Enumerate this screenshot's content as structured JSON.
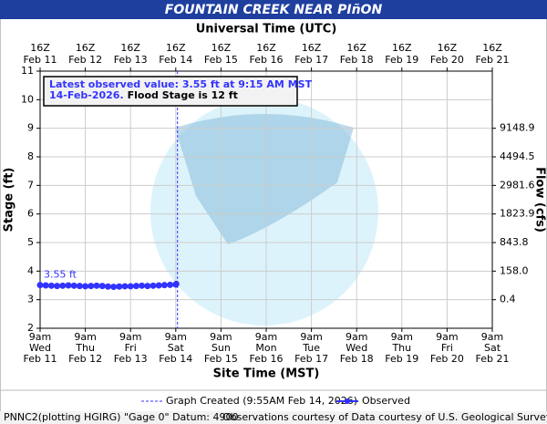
{
  "chart_data": {
    "type": "line",
    "title": "FOUNTAIN CREEK NEAR PIñON",
    "x2_label": "Universal Time (UTC)",
    "xlabel": "Site Time (MST)",
    "ylabel": "Stage (ft)",
    "y2label": "Flow (cfs)",
    "xlim": [
      0,
      10
    ],
    "xticks": [
      {
        "value": 0,
        "label": "Feb 11"
      },
      {
        "value": 1,
        "label": "Feb 12"
      },
      {
        "value": 2,
        "label": "Feb 13"
      },
      {
        "value": 3,
        "label": "Feb 14"
      },
      {
        "value": 4,
        "label": "Feb 15"
      },
      {
        "value": 5,
        "label": "Feb 16"
      },
      {
        "value": 6,
        "label": "Feb 17"
      },
      {
        "value": 7,
        "label": "Feb 18"
      },
      {
        "value": 8,
        "label": "Feb 19"
      },
      {
        "value": 9,
        "label": "Feb 20"
      },
      {
        "value": 10,
        "label": "Feb 21"
      }
    ],
    "xtick_hour": "9am",
    "x2tick_hour": "16Z",
    "xtick_weekdays": [
      "Wed",
      "Thu",
      "Fri",
      "Sat",
      "Sun",
      "Mon",
      "Tue",
      "Wed",
      "Thu",
      "Fri",
      "Sat"
    ],
    "ylim": [
      2,
      11
    ],
    "yticks": [
      2,
      3,
      4,
      5,
      6,
      7,
      8,
      9,
      10,
      11
    ],
    "y2ticks": [
      {
        "value": 0.4,
        "label": "0.4",
        "stage": 3
      },
      {
        "value": 158,
        "label": "158.0",
        "stage": 4
      },
      {
        "value": 843.8,
        "label": "843.8",
        "stage": 5
      },
      {
        "value": 1823.9,
        "label": "1823.9",
        "stage": 6
      },
      {
        "value": 2981.6,
        "label": "2981.6",
        "stage": 7
      },
      {
        "value": 4494.5,
        "label": "4494.5",
        "stage": 8
      },
      {
        "value": 9148.9,
        "label": "9148.9",
        "stage": 9
      }
    ],
    "grid": true,
    "series": [
      {
        "name": "Observed",
        "color": "#3333ff",
        "x": [
          0,
          0.125,
          0.25,
          0.375,
          0.5,
          0.625,
          0.75,
          0.875,
          1,
          1.125,
          1.25,
          1.375,
          1.5,
          1.625,
          1.75,
          1.875,
          2,
          2.125,
          2.25,
          2.375,
          2.5,
          2.625,
          2.75,
          2.875,
          3,
          3.0104
        ],
        "values": [
          3.51,
          3.5,
          3.49,
          3.48,
          3.49,
          3.5,
          3.49,
          3.48,
          3.47,
          3.48,
          3.49,
          3.48,
          3.46,
          3.45,
          3.46,
          3.47,
          3.47,
          3.48,
          3.49,
          3.48,
          3.49,
          3.5,
          3.51,
          3.52,
          3.53,
          3.55
        ]
      }
    ],
    "latest_label": "3.55 ft",
    "graph_created": {
      "x": 3.0382,
      "label": "Graph Created (9:55AM Feb 14, 2026)"
    },
    "annotation": {
      "line1": "Latest observed value: 3.55 ft at 9:15 AM MST",
      "date": "14-Feb-2026.",
      "flood": "Flood Stage is 12 ft"
    },
    "footer_left": "PNNC2(plotting HGIRG) \"Gage 0\" Datum: 4900",
    "footer_right": "Observations courtesy of Data courtesy of U.S. Geological Survey"
  }
}
